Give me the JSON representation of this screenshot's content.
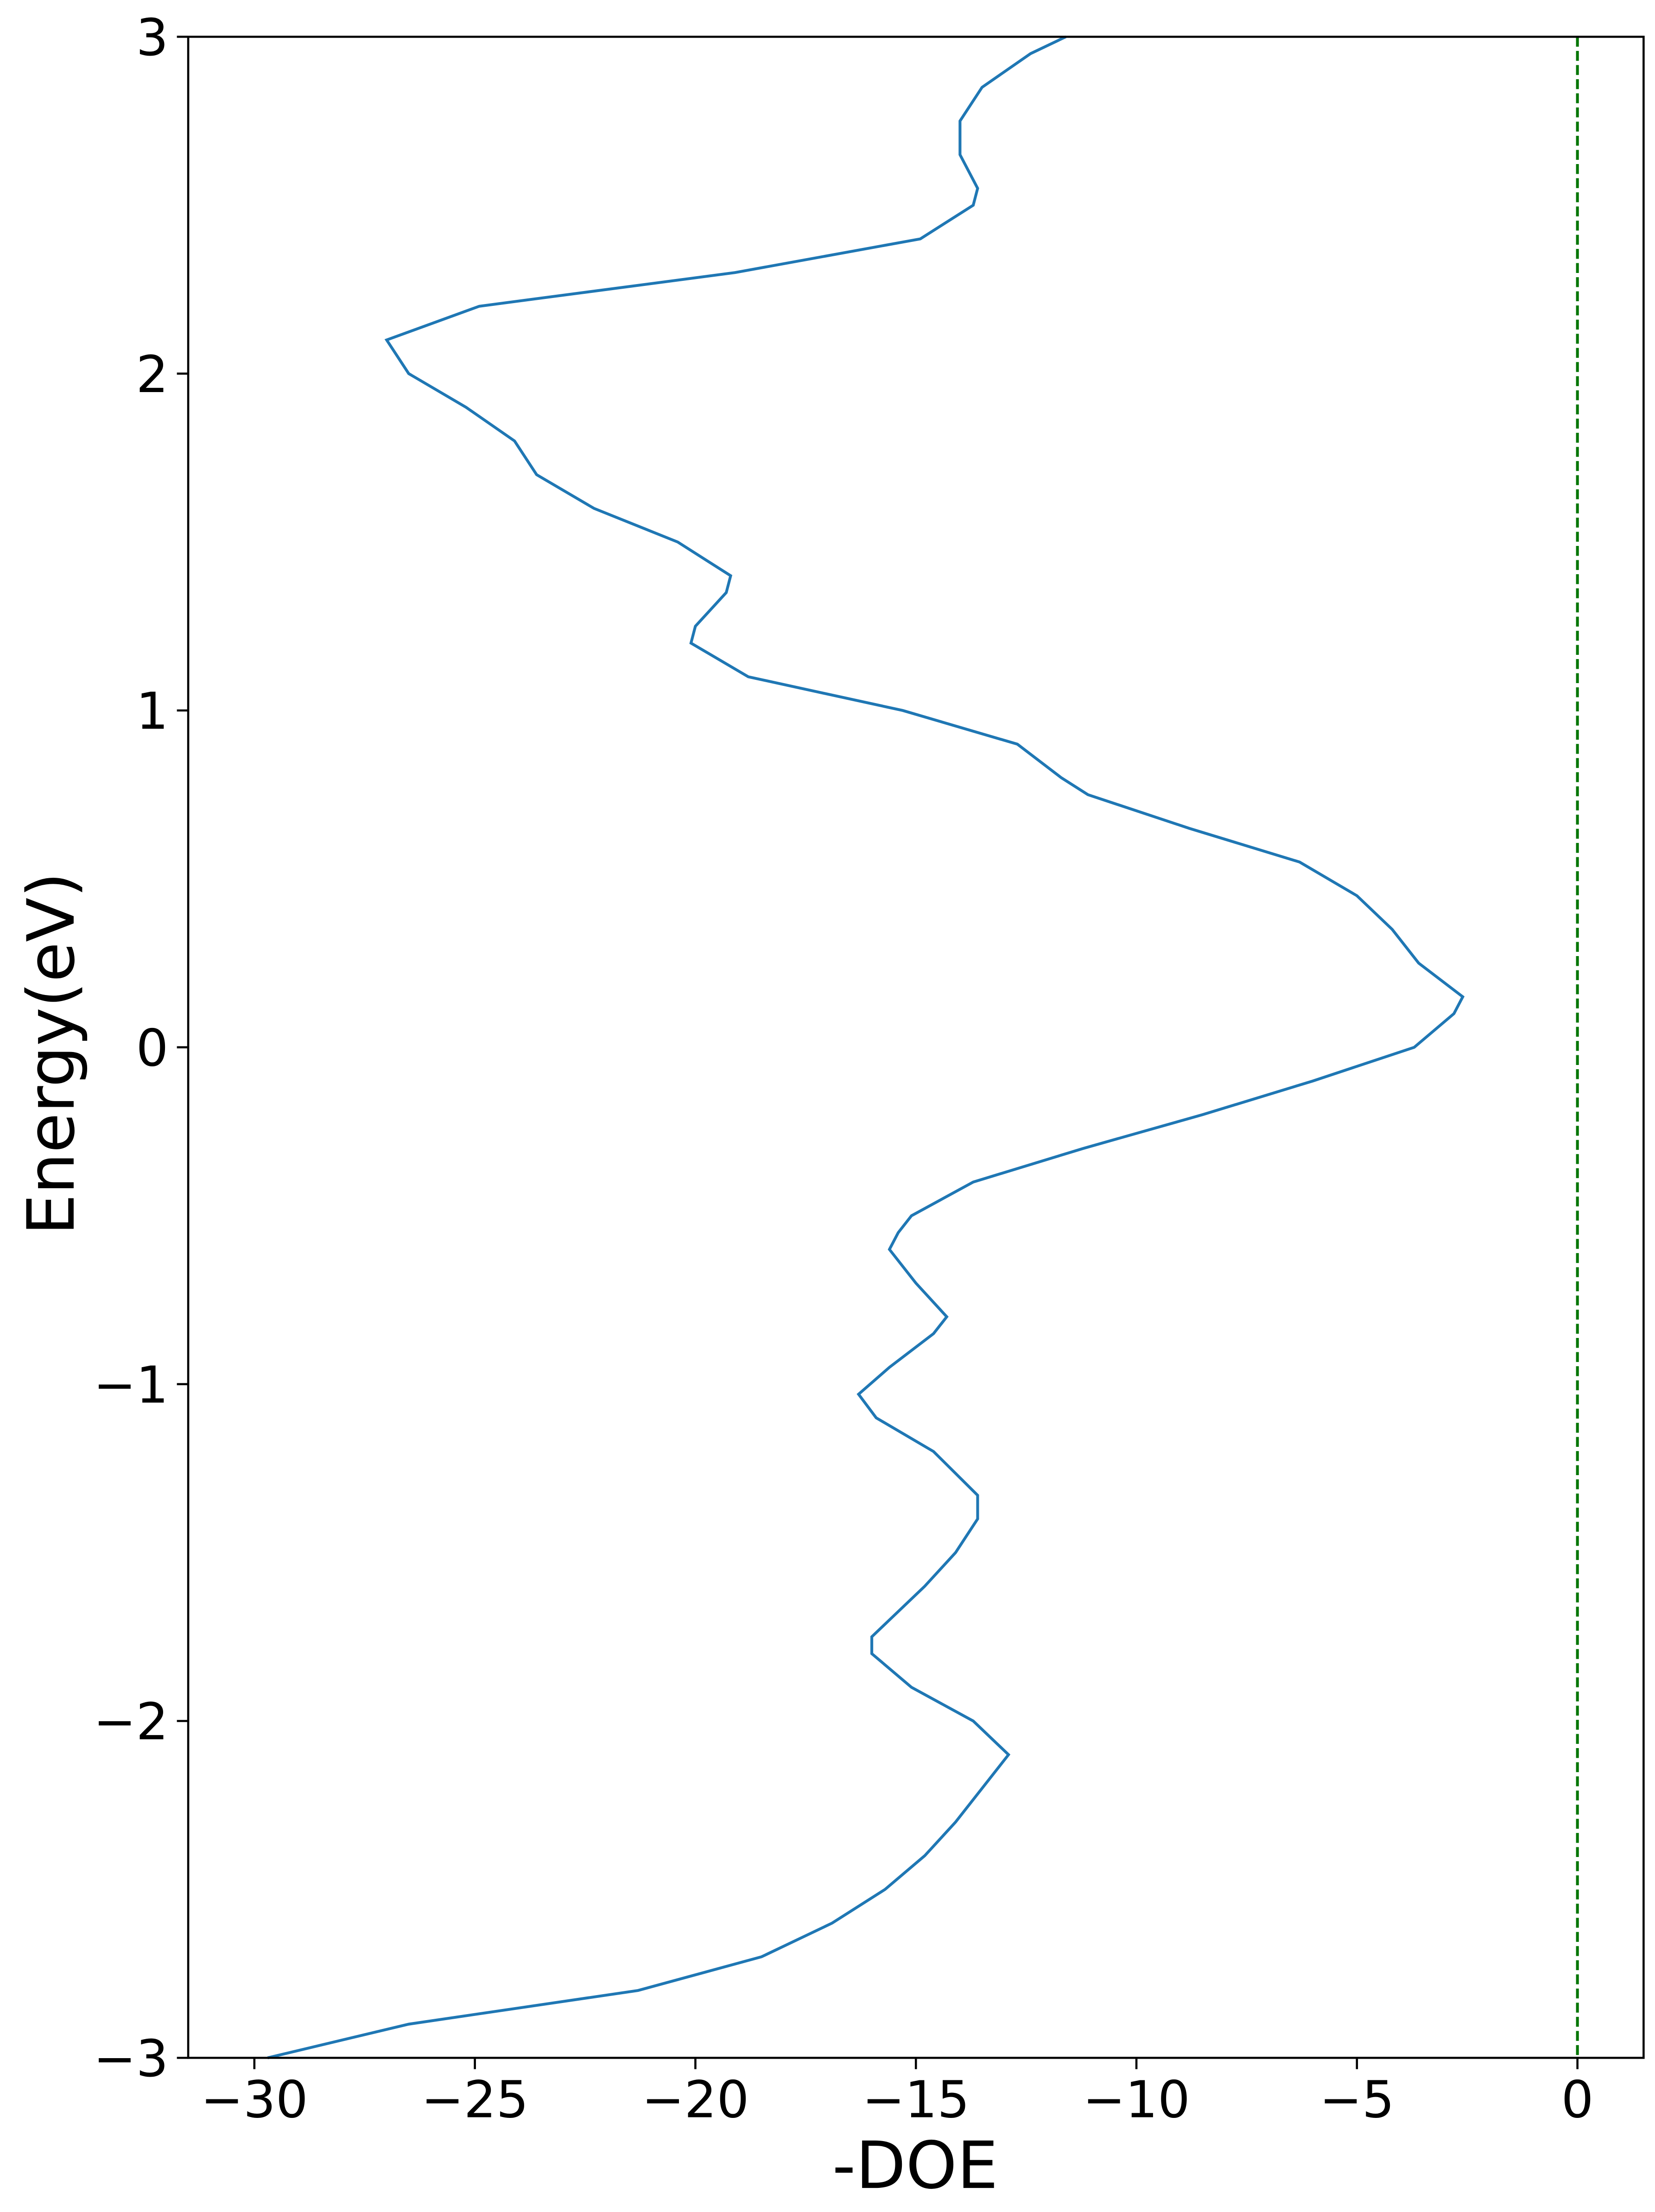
{
  "chart_data": {
    "type": "line",
    "xlabel": "-DOE",
    "ylabel": "Energy(eV)",
    "series": [
      {
        "color": "#1f77b4",
        "y": [
          -3,
          -2.9,
          -2.8,
          -2.7,
          -2.6,
          -2.5,
          -2.4,
          -2.3,
          -2.2,
          -2.1,
          -2.0,
          -1.9,
          -1.8,
          -1.75,
          -1.7,
          -1.6,
          -1.5,
          -1.4,
          -1.33,
          -1.2,
          -1.1,
          -1.03,
          -0.95,
          -0.85,
          -0.8,
          -0.7,
          -0.6,
          -0.55,
          -0.5,
          -0.4,
          -0.3,
          -0.2,
          -0.1,
          0,
          0.1,
          0.15,
          0.25,
          0.35,
          0.45,
          0.55,
          0.65,
          0.75,
          0.8,
          0.9,
          1.0,
          1.1,
          1.2,
          1.25,
          1.35,
          1.4,
          1.5,
          1.6,
          1.7,
          1.8,
          1.9,
          2.0,
          2.1,
          2.2,
          2.3,
          2.4,
          2.5,
          2.55,
          2.65,
          2.75,
          2.85,
          2.95,
          3.0
        ],
        "x": [
          -29.7,
          -26.5,
          -21.3,
          -18.5,
          -16.9,
          -15.7,
          -14.8,
          -14.1,
          -13.5,
          -12.9,
          -13.7,
          -15.1,
          -16.0,
          -16.0,
          -15.6,
          -14.8,
          -14.1,
          -13.6,
          -13.6,
          -14.6,
          -15.9,
          -16.3,
          -15.6,
          -14.6,
          -14.3,
          -15.0,
          -15.6,
          -15.4,
          -15.1,
          -13.7,
          -11.2,
          -8.5,
          -6.0,
          -3.7,
          -2.8,
          -2.6,
          -3.6,
          -4.2,
          -5.0,
          -6.3,
          -8.8,
          -11.1,
          -11.7,
          -12.7,
          -15.3,
          -18.8,
          -20.1,
          -20.0,
          -19.3,
          -19.2,
          -20.4,
          -22.3,
          -23.6,
          -24.1,
          -25.2,
          -26.5,
          -27.0,
          -24.9,
          -19.1,
          -14.9,
          -13.7,
          -13.6,
          -14.0,
          -14.0,
          -13.5,
          -12.4,
          -11.6
        ]
      }
    ],
    "vline": {
      "x": 0,
      "color": "#007500",
      "dashed": true
    },
    "xlim": [
      -31.5,
      1.5
    ],
    "ylim": [
      -3,
      3
    ],
    "xticks": [
      {
        "value": -30,
        "label": "−30"
      },
      {
        "value": -25,
        "label": "−25"
      },
      {
        "value": -20,
        "label": "−20"
      },
      {
        "value": -15,
        "label": "−15"
      },
      {
        "value": -10,
        "label": "−10"
      },
      {
        "value": -5,
        "label": "−5"
      },
      0
    ],
    "yticks": [
      {
        "value": -3,
        "label": "−3"
      },
      {
        "value": -2,
        "label": "−2"
      },
      {
        "value": -1,
        "label": "−1"
      },
      0,
      1,
      2,
      3
    ],
    "grid": false
  }
}
